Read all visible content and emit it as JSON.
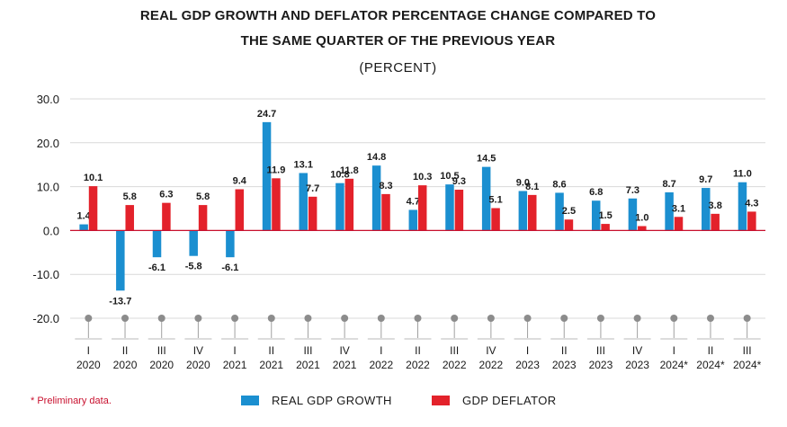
{
  "title_line1": "REAL GDP GROWTH AND DEFLATOR PERCENTAGE CHANGE COMPARED TO",
  "title_line2": "THE SAME QUARTER OF THE PREVIOUS YEAR",
  "subtitle": "(PERCENT)",
  "footnote": "* Preliminary data.",
  "colors": {
    "gdp": "#1b8fd0",
    "deflator": "#e3222b",
    "zero_line": "#c8102e",
    "grid": "#d9d9d9"
  },
  "chart_data": {
    "type": "bar",
    "title": "REAL GDP GROWTH AND DEFLATOR PERCENTAGE CHANGE COMPARED TO THE SAME QUARTER OF THE PREVIOUS YEAR",
    "ylabel": "(PERCENT)",
    "ylim": [
      -20,
      30
    ],
    "yticks": [
      "30.0",
      "20.0",
      "10.0",
      "0.0",
      "-10.0",
      "-20.0"
    ],
    "ytick_values": [
      30,
      20,
      10,
      0,
      -10,
      -20
    ],
    "grid": true,
    "legend_position": "bottom",
    "categories": [
      {
        "q": "I",
        "y": "2020"
      },
      {
        "q": "II",
        "y": "2020"
      },
      {
        "q": "III",
        "y": "2020"
      },
      {
        "q": "IV",
        "y": "2020"
      },
      {
        "q": "I",
        "y": "2021"
      },
      {
        "q": "II",
        "y": "2021"
      },
      {
        "q": "III",
        "y": "2021"
      },
      {
        "q": "IV",
        "y": "2021"
      },
      {
        "q": "I",
        "y": "2022"
      },
      {
        "q": "II",
        "y": "2022"
      },
      {
        "q": "III",
        "y": "2022"
      },
      {
        "q": "IV",
        "y": "2022"
      },
      {
        "q": "I",
        "y": "2023"
      },
      {
        "q": "II",
        "y": "2023"
      },
      {
        "q": "III",
        "y": "2023"
      },
      {
        "q": "IV",
        "y": "2023"
      },
      {
        "q": "I",
        "y": "2024*"
      },
      {
        "q": "II",
        "y": "2024*"
      },
      {
        "q": "III",
        "y": "2024*"
      }
    ],
    "series": [
      {
        "name": "REAL GDP GROWTH",
        "values": [
          1.4,
          -13.7,
          -6.1,
          -5.8,
          -6.1,
          24.7,
          13.1,
          10.8,
          14.8,
          4.7,
          10.5,
          14.5,
          9.0,
          8.6,
          6.8,
          7.3,
          8.7,
          9.7,
          11.0
        ],
        "labels": [
          "1.4",
          "-13.7",
          "-6.1",
          "-5.8",
          "-6.1",
          "24.7",
          "13.1",
          "10.8",
          "14.8",
          "4.7",
          "10.5",
          "14.5",
          "9.0",
          "8.6",
          "6.8",
          "7.3",
          "8.7",
          "9.7",
          "11.0"
        ]
      },
      {
        "name": "GDP DEFLATOR",
        "values": [
          10.1,
          5.8,
          6.3,
          5.8,
          9.4,
          11.9,
          7.7,
          11.8,
          8.3,
          10.3,
          9.3,
          5.1,
          8.1,
          2.5,
          1.5,
          1.0,
          3.1,
          3.8,
          4.3
        ],
        "labels": [
          "10.1",
          "5.8",
          "6.3",
          "5.8",
          "9.4",
          "11.9",
          "7.7",
          "11.8",
          "8.3",
          "10.3",
          "9.3",
          "5.1",
          "8.1",
          "2.5",
          "1.5",
          "1.0",
          "3.1",
          "3.8",
          "4.3"
        ]
      }
    ]
  }
}
